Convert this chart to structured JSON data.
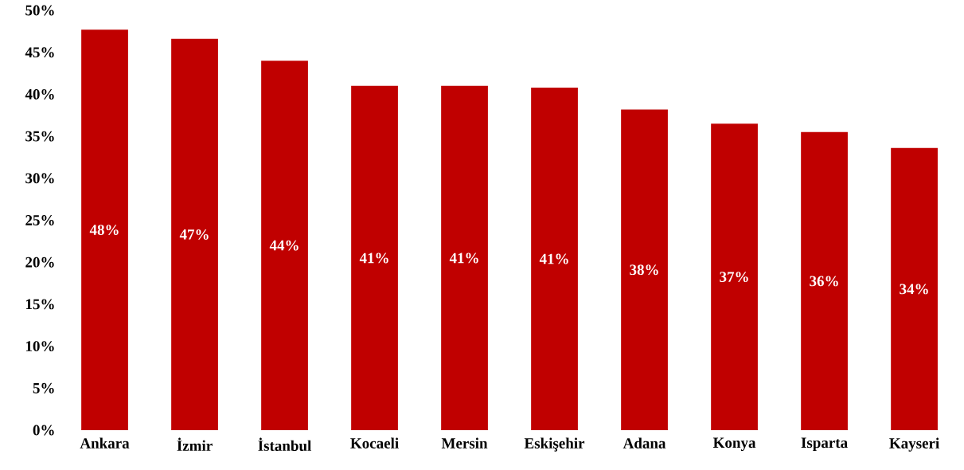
{
  "chart_data": {
    "type": "bar",
    "categories": [
      "Ankara",
      "İzmir",
      "İstanbul",
      "Kocaeli",
      "Mersin",
      "Eskişehir",
      "Adana",
      "Konya",
      "Isparta",
      "Kayseri"
    ],
    "values": [
      47.7,
      46.6,
      44.0,
      41.0,
      41.0,
      40.8,
      38.2,
      36.5,
      35.5,
      33.6
    ],
    "value_labels": [
      "48%",
      "47%",
      "44%",
      "41%",
      "41%",
      "41%",
      "38%",
      "37%",
      "36%",
      "34%"
    ],
    "color": "#c00000",
    "ylim": [
      0,
      50
    ],
    "yticks": [
      {
        "value": 0,
        "label": "0%"
      },
      {
        "value": 5,
        "label": "5%"
      },
      {
        "value": 10,
        "label": "10%"
      },
      {
        "value": 15,
        "label": "15%"
      },
      {
        "value": 20,
        "label": "20%"
      },
      {
        "value": 25,
        "label": "25%"
      },
      {
        "value": 30,
        "label": "30%"
      },
      {
        "value": 35,
        "label": "35%"
      },
      {
        "value": 40,
        "label": "40%"
      },
      {
        "value": 45,
        "label": "45%"
      },
      {
        "value": 50,
        "label": "50%"
      }
    ]
  }
}
